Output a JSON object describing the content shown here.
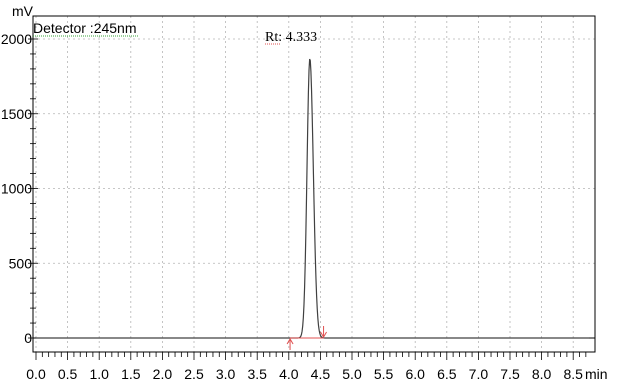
{
  "chart_data": {
    "type": "line",
    "y_unit_label": "mV",
    "detector_label": "Detector :245nm",
    "x_unit_label": "min",
    "xlim": [
      0.0,
      8.75
    ],
    "ylim": [
      -40,
      2040
    ],
    "x_ticks": [
      0.0,
      0.5,
      1.0,
      1.5,
      2.0,
      2.5,
      3.0,
      3.5,
      4.0,
      4.5,
      5.0,
      5.5,
      6.0,
      6.5,
      7.0,
      7.5,
      8.0,
      8.5
    ],
    "x_tick_labels": [
      "0.0",
      "0.5",
      "1.0",
      "1.5",
      "2.0",
      "2.5",
      "3.0",
      "3.5",
      "4.0",
      "4.5",
      "5.0",
      "5.5",
      "6.0",
      "6.5",
      "7.0",
      "7.5",
      "8.0",
      "8.5"
    ],
    "y_ticks": [
      0,
      500,
      1000,
      1500,
      2000
    ],
    "y_tick_labels": [
      "0",
      "500",
      "1000",
      "1500",
      "2000"
    ],
    "grid": true,
    "series": [
      {
        "color": "#404040",
        "x": [
          0.0,
          3.0,
          3.8,
          4.0,
          4.1,
          4.2,
          4.25,
          4.3,
          4.33,
          4.36,
          4.4,
          4.45,
          4.5,
          4.6,
          4.7,
          5.0,
          6.0,
          8.75
        ],
        "y": [
          0,
          0,
          0,
          2,
          10,
          70,
          280,
          1000,
          1870,
          1500,
          820,
          250,
          60,
          10,
          2,
          0,
          0,
          0
        ]
      }
    ],
    "peak": {
      "label": "Rt: 4.333",
      "rt": 4.333,
      "height": 1870,
      "baseline_start": 4.02,
      "baseline_end": 4.55
    }
  }
}
